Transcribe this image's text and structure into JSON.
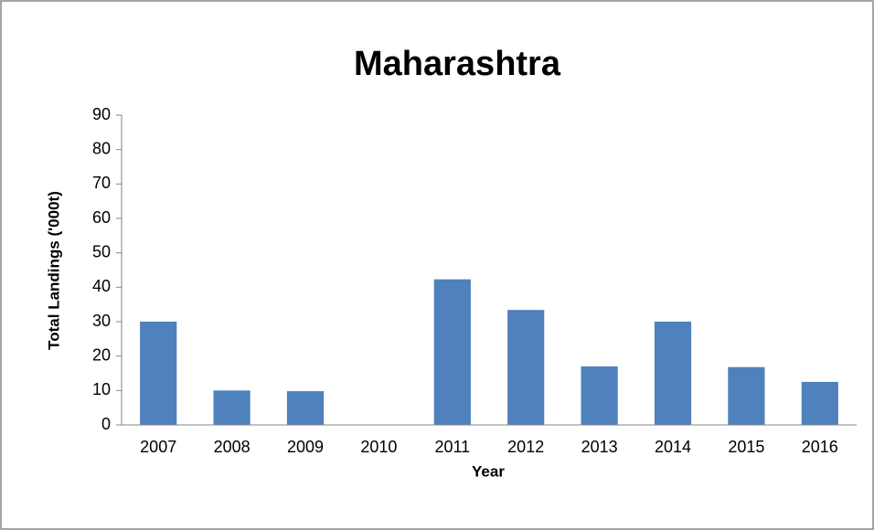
{
  "chart_data": {
    "type": "bar",
    "title": "Maharashtra",
    "x_label": "Year",
    "y_label": "Total Landings ('000t)",
    "categories": [
      "2007",
      "2008",
      "2009",
      "2010",
      "2011",
      "2012",
      "2013",
      "2014",
      "2015",
      "2016"
    ],
    "values": [
      30,
      10,
      9.8,
      0,
      42.3,
      33.4,
      17,
      30,
      16.8,
      12.5
    ],
    "color": "#4f81bd",
    "ylim": [
      0,
      90
    ],
    "yticks": [
      0,
      10,
      20,
      30,
      40,
      50,
      60,
      70,
      80,
      90
    ],
    "grid": false
  }
}
